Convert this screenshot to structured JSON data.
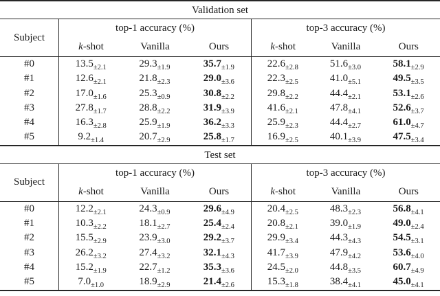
{
  "colors": {
    "text": "#1a1a1a",
    "rule": "#262626",
    "background": "#ffffff"
  },
  "sections": [
    {
      "title": "Validation set",
      "header": {
        "subject": "Subject",
        "group1": "top-1 accuracy (%)",
        "group2": "top-3 accuracy (%)",
        "kshot_italic": "k",
        "kshot_rest": "-shot",
        "vanilla": "Vanilla",
        "ours": "Ours"
      },
      "rows": [
        {
          "subject": "#0",
          "c": [
            [
              "13.5",
              "±2.1"
            ],
            [
              "29.3",
              "±1.9"
            ],
            [
              "35.7",
              "±1.9"
            ],
            [
              "22.6",
              "±2.8"
            ],
            [
              "51.6",
              "±3.0"
            ],
            [
              "58.1",
              "±2.9"
            ]
          ]
        },
        {
          "subject": "#1",
          "c": [
            [
              "12.6",
              "±2.1"
            ],
            [
              "21.8",
              "±2.3"
            ],
            [
              "29.0",
              "±3.6"
            ],
            [
              "22.3",
              "±2.5"
            ],
            [
              "41.0",
              "±5.1"
            ],
            [
              "49.5",
              "±3.5"
            ]
          ]
        },
        {
          "subject": "#2",
          "c": [
            [
              "17.0",
              "±1.6"
            ],
            [
              "25.3",
              "±0.9"
            ],
            [
              "30.8",
              "±2.2"
            ],
            [
              "29.8",
              "±2.2"
            ],
            [
              "44.4",
              "±2.1"
            ],
            [
              "53.1",
              "±2.6"
            ]
          ]
        },
        {
          "subject": "#3",
          "c": [
            [
              "27.8",
              "±1.7"
            ],
            [
              "28.8",
              "±2.2"
            ],
            [
              "31.9",
              "±3.9"
            ],
            [
              "41.6",
              "±2.1"
            ],
            [
              "47.8",
              "±4.1"
            ],
            [
              "52.6",
              "±3.7"
            ]
          ]
        },
        {
          "subject": "#4",
          "c": [
            [
              "16.3",
              "±2.8"
            ],
            [
              "25.9",
              "±1.9"
            ],
            [
              "36.2",
              "±3.3"
            ],
            [
              "25.9",
              "±2.3"
            ],
            [
              "44.4",
              "±2.7"
            ],
            [
              "61.0",
              "±4.7"
            ]
          ]
        },
        {
          "subject": "#5",
          "c": [
            [
              "9.2",
              "±1.4"
            ],
            [
              "20.7",
              "±2.9"
            ],
            [
              "25.8",
              "±1.7"
            ],
            [
              "16.9",
              "±2.5"
            ],
            [
              "40.1",
              "±3.9"
            ],
            [
              "47.5",
              "±3.4"
            ]
          ]
        }
      ]
    },
    {
      "title": "Test set",
      "header": {
        "subject": "Subject",
        "group1": "top-1 accuracy (%)",
        "group2": "top-3 accuracy (%)",
        "kshot_italic": "k",
        "kshot_rest": "-shot",
        "vanilla": "Vanilla",
        "ours": "Ours"
      },
      "rows": [
        {
          "subject": "#0",
          "c": [
            [
              "12.2",
              "±2.1"
            ],
            [
              "24.3",
              "±0.9"
            ],
            [
              "29.6",
              "±4.9"
            ],
            [
              "20.4",
              "±2.5"
            ],
            [
              "48.3",
              "±2.3"
            ],
            [
              "56.8",
              "±4.1"
            ]
          ]
        },
        {
          "subject": "#1",
          "c": [
            [
              "10.3",
              "±2.2"
            ],
            [
              "18.1",
              "±2.7"
            ],
            [
              "25.4",
              "±2.4"
            ],
            [
              "20.8",
              "±2.1"
            ],
            [
              "39.0",
              "±1.9"
            ],
            [
              "49.0",
              "±2.4"
            ]
          ]
        },
        {
          "subject": "#2",
          "c": [
            [
              "15.5",
              "±2.9"
            ],
            [
              "23.9",
              "±3.0"
            ],
            [
              "29.2",
              "±3.7"
            ],
            [
              "29.9",
              "±3.4"
            ],
            [
              "44.3",
              "±4.3"
            ],
            [
              "54.5",
              "±3.1"
            ]
          ]
        },
        {
          "subject": "#3",
          "c": [
            [
              "26.2",
              "±3.2"
            ],
            [
              "27.4",
              "±3.2"
            ],
            [
              "32.1",
              "±4.3"
            ],
            [
              "41.7",
              "±3.9"
            ],
            [
              "47.9",
              "±4.2"
            ],
            [
              "53.6",
              "±4.0"
            ]
          ]
        },
        {
          "subject": "#4",
          "c": [
            [
              "15.2",
              "±1.9"
            ],
            [
              "22.7",
              "±1.2"
            ],
            [
              "35.3",
              "±3.6"
            ],
            [
              "24.5",
              "±2.0"
            ],
            [
              "44.8",
              "±3.5"
            ],
            [
              "60.7",
              "±4.9"
            ]
          ]
        },
        {
          "subject": "#5",
          "c": [
            [
              "7.0",
              "±1.0"
            ],
            [
              "18.9",
              "±2.9"
            ],
            [
              "21.4",
              "±2.6"
            ],
            [
              "15.3",
              "±1.8"
            ],
            [
              "38.4",
              "±4.1"
            ],
            [
              "45.0",
              "±4.1"
            ]
          ]
        }
      ]
    }
  ]
}
